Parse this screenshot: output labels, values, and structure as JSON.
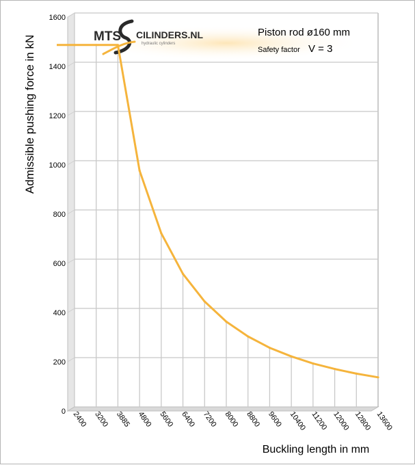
{
  "chart_data": {
    "type": "line",
    "title": "Piston rod ø160 mm",
    "subtitle_prefix": "Safety factor",
    "subtitle_value": "V = 3",
    "xlabel": "Buckling length in mm",
    "ylabel": "Admissible pushing force in kN",
    "categories": [
      "2400",
      "3200",
      "3885",
      "4800",
      "5600",
      "6400",
      "7200",
      "8000",
      "8800",
      "9600",
      "10400",
      "11200",
      "12000",
      "12800",
      "13600"
    ],
    "yticks": [
      0,
      200,
      400,
      600,
      800,
      1000,
      1200,
      1400,
      1600
    ],
    "ylim": [
      0,
      1600
    ],
    "grid": true,
    "series": [
      {
        "values": [
          1470,
          1470,
          1470,
          960,
          705,
          540,
          428,
          346,
          286,
          240,
          205,
          176,
          154,
          135,
          120
        ]
      }
    ],
    "colors": {
      "line": "#f5b43c",
      "grid": "#c8c8c8",
      "axis": "#7f7f7f",
      "plot_bg": "#ffffff"
    }
  },
  "logo": {
    "mts": "MTS",
    "cylinders": "CILINDERS.NL",
    "tagline": "hydraulic cylinders",
    "icon": "s-swoosh-logo-icon"
  }
}
